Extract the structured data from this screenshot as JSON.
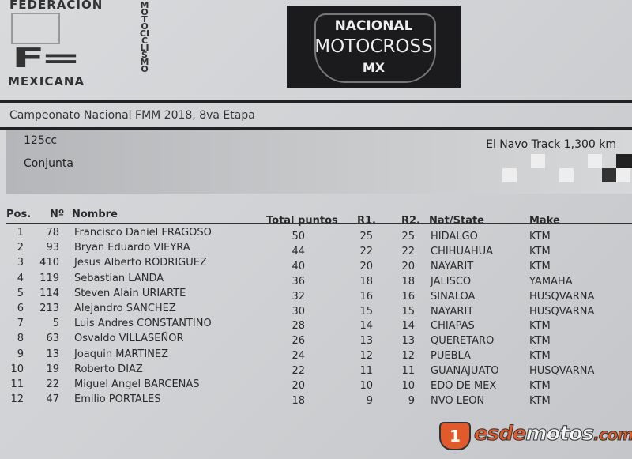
{
  "logos": {
    "fmm": {
      "top": "FEDERACION",
      "bottom": "MEXICANA",
      "vertical": "MOTOCICLISMO",
      "mark": "FM"
    },
    "nmx": {
      "line1": "NACIONAL",
      "line2": "MOTOCROSS",
      "line3": "MX"
    },
    "watermark": {
      "badge": "1",
      "part1": "esde",
      "part2": "motos",
      "part3": ".com"
    }
  },
  "event": {
    "title": "Campeonato Nacional FMM 2018, 8va Etapa",
    "class": "125cc",
    "type": "Conjunta",
    "track": "El Navo Track 1,300 km"
  },
  "table": {
    "headers": {
      "pos": "Pos.",
      "num": "Nº",
      "name": "Nombre",
      "total": "Total puntos",
      "r1": "R1.",
      "r2": "R2.",
      "state": "Nat/State",
      "make": "Make"
    },
    "rows": [
      {
        "pos": "1",
        "num": "78",
        "name": "Francisco Daniel FRAGOSO",
        "total": "50",
        "r1": "25",
        "r2": "25",
        "state": "HIDALGO",
        "make": "KTM"
      },
      {
        "pos": "2",
        "num": "93",
        "name": "Bryan Eduardo VIEYRA",
        "total": "44",
        "r1": "22",
        "r2": "22",
        "state": "CHIHUAHUA",
        "make": "KTM"
      },
      {
        "pos": "3",
        "num": "410",
        "name": "Jesus Alberto RODRIGUEZ",
        "total": "40",
        "r1": "20",
        "r2": "20",
        "state": "NAYARIT",
        "make": "KTM"
      },
      {
        "pos": "4",
        "num": "119",
        "name": "Sebastian LANDA",
        "total": "36",
        "r1": "18",
        "r2": "18",
        "state": "JALISCO",
        "make": "YAMAHA"
      },
      {
        "pos": "5",
        "num": "114",
        "name": "Steven Alain URIARTE",
        "total": "32",
        "r1": "16",
        "r2": "16",
        "state": "SINALOA",
        "make": "HUSQVARNA"
      },
      {
        "pos": "6",
        "num": "213",
        "name": "Alejandro SANCHEZ",
        "total": "30",
        "r1": "15",
        "r2": "15",
        "state": "NAYARIT",
        "make": "HUSQVARNA"
      },
      {
        "pos": "7",
        "num": "5",
        "name": "Luis Andres CONSTANTINO",
        "total": "28",
        "r1": "14",
        "r2": "14",
        "state": "CHIAPAS",
        "make": "KTM"
      },
      {
        "pos": "8",
        "num": "63",
        "name": "Osvaldo  VILLASEÑOR",
        "total": "26",
        "r1": "13",
        "r2": "13",
        "state": "QUERETARO",
        "make": "KTM"
      },
      {
        "pos": "9",
        "num": "13",
        "name": "Joaquin MARTINEZ",
        "total": "24",
        "r1": "12",
        "r2": "12",
        "state": "PUEBLA",
        "make": "KTM"
      },
      {
        "pos": "10",
        "num": "19",
        "name": "Roberto DIAZ",
        "total": "22",
        "r1": "11",
        "r2": "11",
        "state": "GUANAJUATO",
        "make": "HUSQVARNA"
      },
      {
        "pos": "11",
        "num": "22",
        "name": "Miguel Angel BARCENAS",
        "total": "20",
        "r1": "10",
        "r2": "10",
        "state": "EDO DE MEX",
        "make": "KTM"
      },
      {
        "pos": "12",
        "num": "47",
        "name": "Emilio PORTALES",
        "total": "18",
        "r1": "9",
        "r2": "9",
        "state": "NVO LEON",
        "make": "KTM"
      }
    ]
  },
  "colors": {
    "brand_orange": "#e05a2b",
    "logo_bg": "#1b1b1d"
  }
}
